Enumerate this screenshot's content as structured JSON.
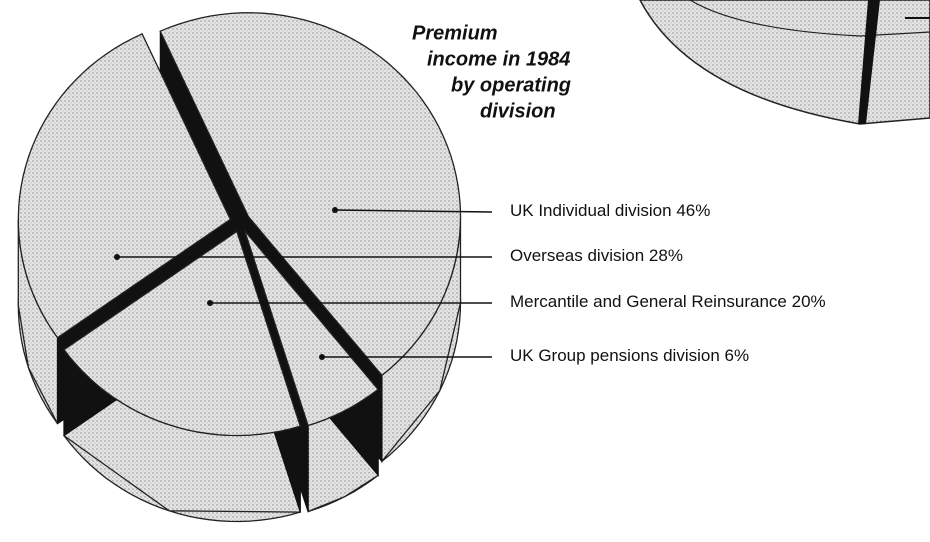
{
  "chart_data": {
    "type": "pie",
    "title": [
      "Premium",
      "income in 1984",
      "by operating",
      "division"
    ],
    "categories": [
      "UK Individual division",
      "UK Group pensions division",
      "Mercantile and General Reinsurance",
      "Overseas division"
    ],
    "values": [
      46,
      6,
      20,
      28
    ],
    "value_labels": [
      "46%",
      "6%",
      "20%",
      "28%"
    ],
    "color": "#d6d6d6"
  }
}
